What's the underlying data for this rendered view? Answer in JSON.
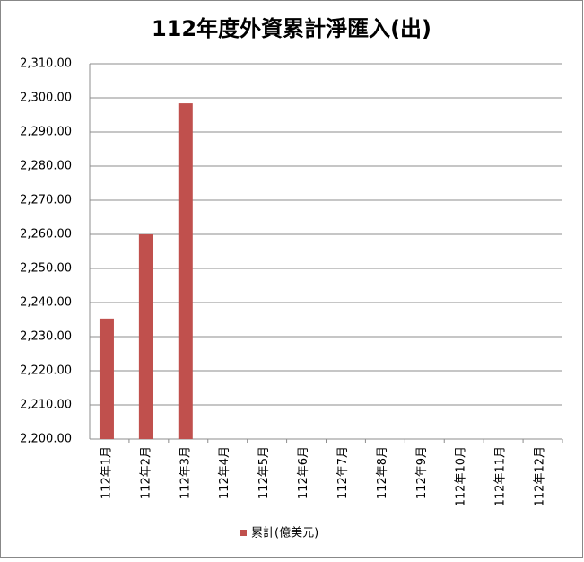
{
  "chart_data": {
    "type": "bar",
    "title": "112年度外資累計淨匯入(出)",
    "categories": [
      "112年1月",
      "112年2月",
      "112年3月",
      "112年4月",
      "112年5月",
      "112年6月",
      "112年7月",
      "112年8月",
      "112年9月",
      "112年10月",
      "112年11月",
      "112年12月"
    ],
    "series": [
      {
        "name": "累計(億美元)",
        "color": "#c0504d",
        "values": [
          2235.3,
          2260.0,
          2298.4,
          null,
          null,
          null,
          null,
          null,
          null,
          null,
          null,
          null
        ]
      }
    ],
    "ylim": [
      2200,
      2310
    ],
    "yticks": [
      {
        "value": 2200,
        "label": "2,200.00"
      },
      {
        "value": 2210,
        "label": "2,210.00"
      },
      {
        "value": 2220,
        "label": "2,220.00"
      },
      {
        "value": 2230,
        "label": "2,230.00"
      },
      {
        "value": 2240,
        "label": "2,240.00"
      },
      {
        "value": 2250,
        "label": "2,250.00"
      },
      {
        "value": 2260,
        "label": "2,260.00"
      },
      {
        "value": 2270,
        "label": "2,270.00"
      },
      {
        "value": 2280,
        "label": "2,280.00"
      },
      {
        "value": 2290,
        "label": "2,290.00"
      },
      {
        "value": 2300,
        "label": "2,300.00"
      },
      {
        "value": 2310,
        "label": "2,310.00"
      }
    ],
    "grid": true,
    "legend": "bottom"
  }
}
